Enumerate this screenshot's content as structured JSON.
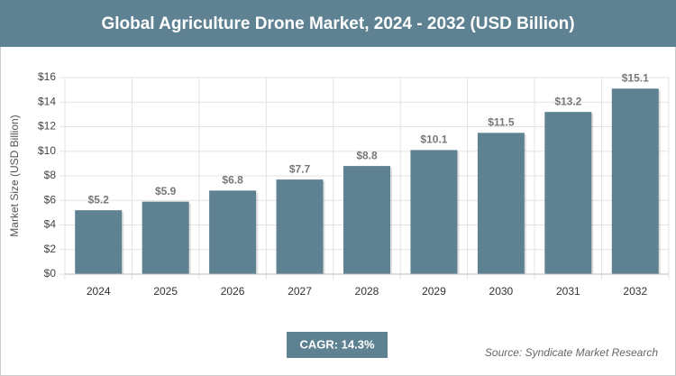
{
  "chart_data": {
    "type": "bar",
    "title": "Global Agriculture Drone Market, 2024 - 2032 (USD Billion)",
    "y_label": "Market Size (USD Billion)",
    "categories": [
      "2024",
      "2025",
      "2026",
      "2027",
      "2028",
      "2029",
      "2030",
      "2031",
      "2032"
    ],
    "values": [
      5.2,
      5.9,
      6.8,
      7.7,
      8.8,
      10.1,
      11.5,
      13.2,
      15.1
    ],
    "value_labels": [
      "$5.2",
      "$5.9",
      "$6.8",
      "$7.7",
      "$8.8",
      "$10.1",
      "$11.5",
      "$13.2",
      "$15.1"
    ],
    "color": "#5f8292",
    "ylim": [
      0,
      16
    ],
    "yticks": [
      {
        "value": 0,
        "label": "$0"
      },
      {
        "value": 2,
        "label": "$2"
      },
      {
        "value": 4,
        "label": "$4"
      },
      {
        "value": 6,
        "label": "$6"
      },
      {
        "value": 8,
        "label": "$8"
      },
      {
        "value": 10,
        "label": "$10"
      },
      {
        "value": 12,
        "label": "$12"
      },
      {
        "value": 14,
        "label": "$14"
      },
      {
        "value": 16,
        "label": "$16"
      }
    ],
    "grid": true,
    "annotations": {
      "cagr": "CAGR: 14.3%",
      "source": "Source: Syndicate Market Research"
    }
  }
}
